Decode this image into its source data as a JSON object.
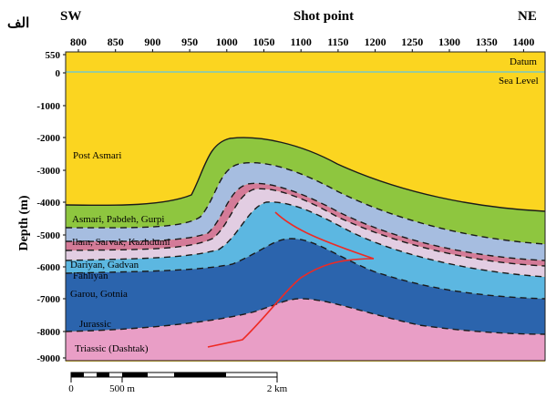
{
  "panel_label": "الف",
  "top_left": "SW",
  "top_title": "Shot point",
  "top_right": "NE",
  "shot_ticks": [
    "800",
    "850",
    "900",
    "950",
    "1000",
    "1050",
    "1100",
    "1150",
    "1200",
    "1250",
    "1300",
    "1350",
    "1400"
  ],
  "y_axis_label": "Depth (m)",
  "depth_ticks": [
    "550",
    "0",
    "-1000",
    "-2000",
    "-3000",
    "-4000",
    "-5000",
    "-6000",
    "-7000",
    "-8000",
    "-9000"
  ],
  "datum_label": "Datum",
  "sea_level_label": "Sea Level",
  "layers": {
    "post_asmari": "Post Asmari",
    "asmari": "Asmari, Pabdeh, Gurpi",
    "ilam": "Ilam, Sarvak, Kazhdumi",
    "dariyan": "Dariyan, Gadvan",
    "fahliyan": "Fahliyan",
    "garou": "Garou, Gotnia",
    "jurassic": "Jurassic",
    "triassic": "Triassic (Dashtak)"
  },
  "colors": {
    "post_asmari": "#fbd520",
    "asmari": "#8ec63f",
    "ilam": "#a6bde0",
    "dariyan": "#d47b98",
    "fahliyan": "#e2cde2",
    "garou": "#5cb7e1",
    "jurassic": "#2b64ad",
    "triassic": "#e99ec6",
    "fault": "#ee2a24",
    "sea_level": "#5bc8e8"
  },
  "scale_bar": {
    "start": "0",
    "mid": "500 m",
    "end": "2 km"
  }
}
